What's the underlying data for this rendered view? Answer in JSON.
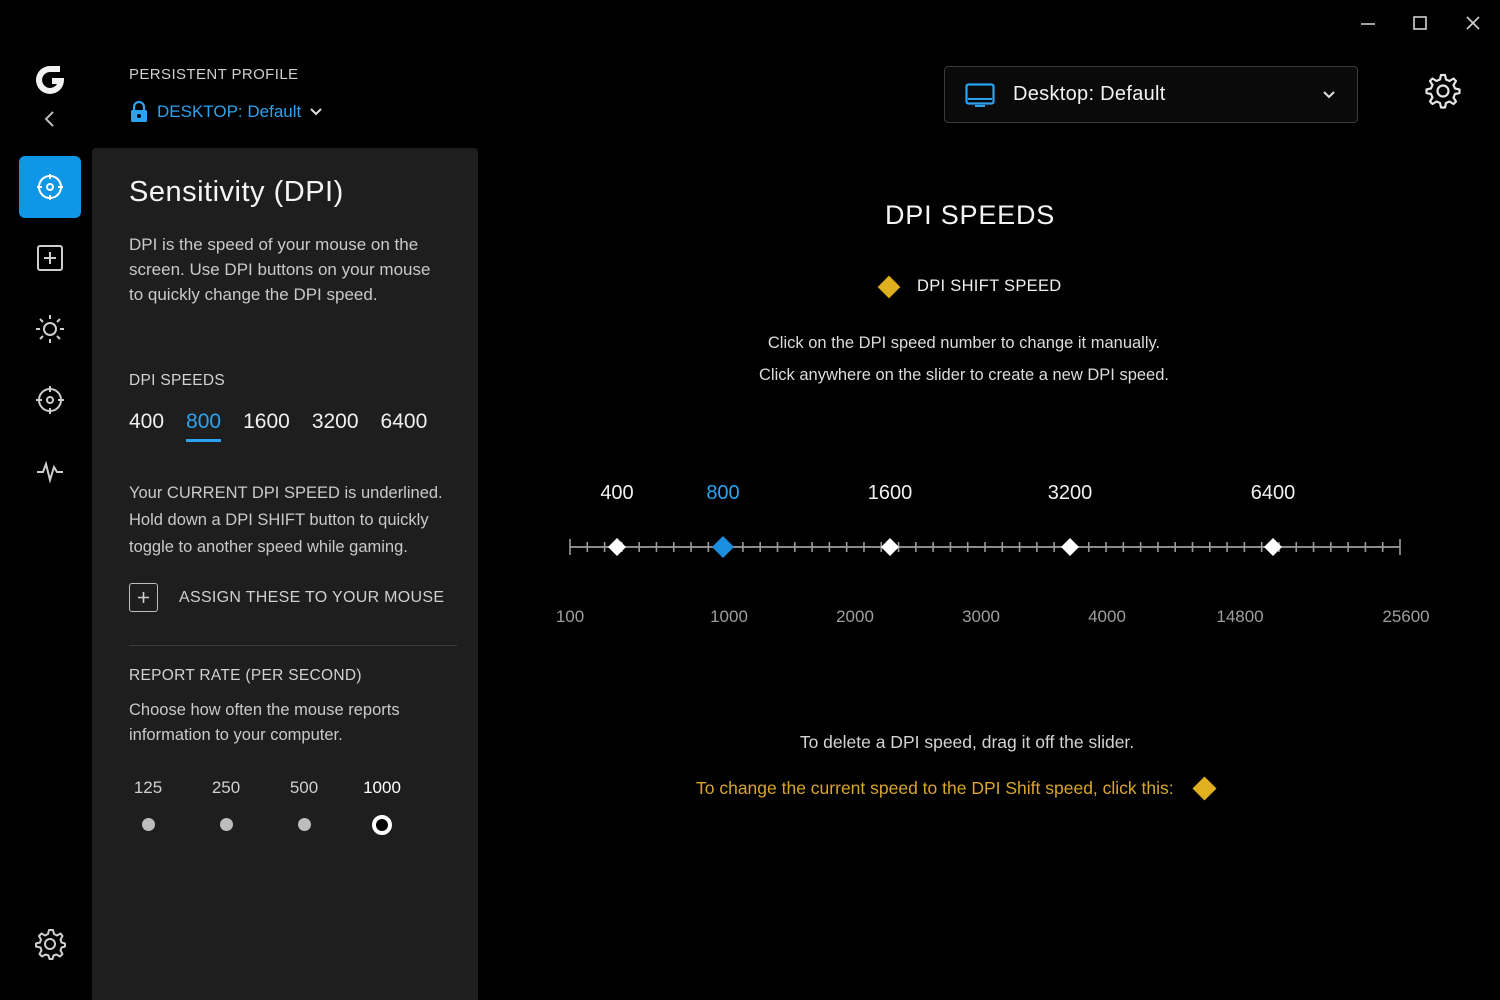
{
  "window": {
    "minimize_icon": "minimize-icon",
    "maximize_icon": "maximize-icon",
    "close_icon": "close-icon"
  },
  "header": {
    "persistent_label": "PERSISTENT PROFILE",
    "profile_name": "DESKTOP: Default",
    "dropdown_label": "Desktop: Default"
  },
  "rail": {
    "items": [
      "sensitivity-icon",
      "assignments-icon",
      "lighting-icon",
      "acceleration-icon",
      "heartbeat-icon"
    ]
  },
  "panel": {
    "title": "Sensitivity (DPI)",
    "description": "DPI is the speed of your mouse on the screen. Use DPI buttons on your mouse to quickly change the DPI speed.",
    "dpi_label": "DPI SPEEDS",
    "dpi_speeds": [
      "400",
      "800",
      "1600",
      "3200",
      "6400"
    ],
    "current_dpi": "800",
    "note": "Your CURRENT DPI SPEED is underlined. Hold down a DPI SHIFT button to quickly toggle to another speed while gaming.",
    "assign_label": "ASSIGN THESE TO YOUR MOUSE",
    "report_rate_label": "REPORT RATE (PER SECOND)",
    "report_rate_desc": "Choose how often the mouse reports information to your computer.",
    "report_rates": [
      "125",
      "250",
      "500",
      "1000"
    ],
    "report_rate_selected": "1000"
  },
  "main": {
    "title": "DPI SPEEDS",
    "shift_legend": "DPI SHIFT SPEED",
    "instruction1": "Click on the DPI speed number to change it manually.",
    "instruction2": "Click anywhere on the slider to create a new DPI speed.",
    "delete_hint": "To delete a DPI speed, drag it off the slider.",
    "shift_hint": "To change the current speed to the DPI Shift speed, click this:"
  },
  "slider": {
    "scale_labels": [
      "100",
      "1000",
      "2000",
      "3000",
      "4000",
      "14800",
      "25600"
    ],
    "handles": [
      "400",
      "800",
      "1600",
      "3200",
      "6400"
    ],
    "active_handle": "800"
  },
  "colors": {
    "accent_blue": "#2ba3f0",
    "rail_active": "#0f96e6",
    "shift_gold": "#e0b020",
    "panel_bg": "#1e1e1e"
  }
}
